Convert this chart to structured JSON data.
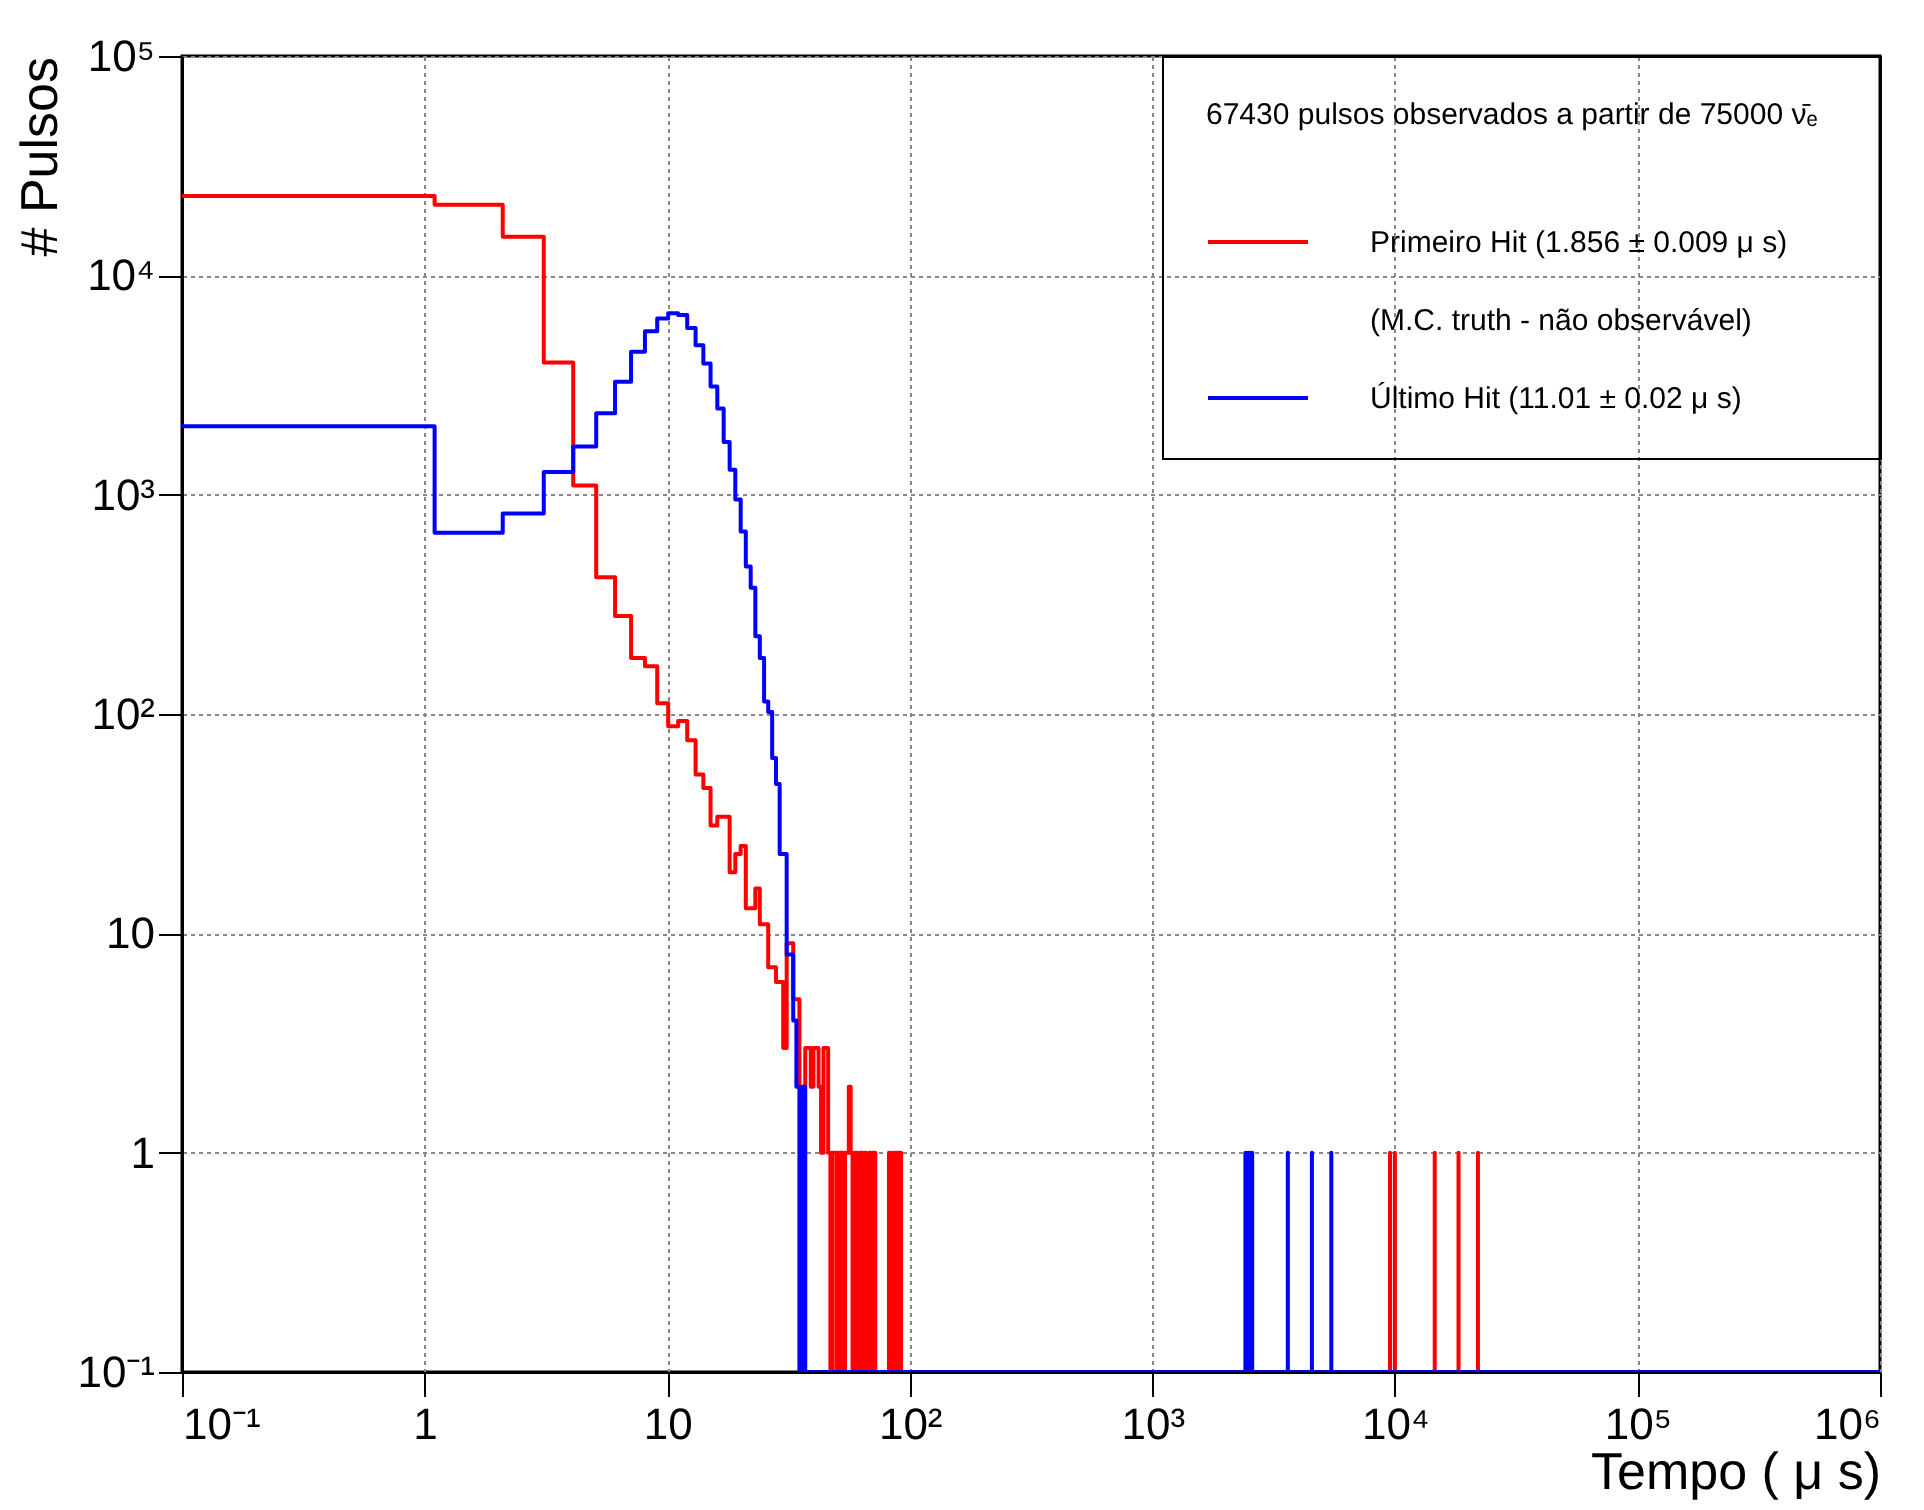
{
  "chart_data": {
    "type": "step",
    "xlabel": "Tempo ( μ s)",
    "ylabel": "# Pulsos",
    "legend_title": "67430   pulsos observados a partir de 75000 ν̄ₑ",
    "annotations": [
      "(M.C. truth - não observável)"
    ],
    "log": "xy",
    "grid": true,
    "legend": "top right",
    "xlim": [
      0.1,
      1000000
    ],
    "ylim": [
      0.1,
      100000
    ],
    "xticks": [
      {
        "value": 0.1,
        "label": "10⁻¹"
      },
      1,
      10,
      {
        "value": 100,
        "label": "10²"
      },
      {
        "value": 1000,
        "label": "10³"
      },
      {
        "value": 10000,
        "label": "10⁴"
      },
      {
        "value": 100000,
        "label": "10⁵"
      },
      {
        "value": 1000000,
        "label": "10⁶"
      }
    ],
    "yticks": [
      {
        "value": 0.1,
        "label": "10⁻¹"
      },
      1,
      10,
      {
        "value": 100,
        "label": "10²"
      },
      {
        "value": 1000,
        "label": "10³"
      },
      {
        "value": 10000,
        "label": "10⁴"
      },
      {
        "value": 100000,
        "label": "10⁵"
      }
    ],
    "series": [
      {
        "name": "Primeiro Hit  (1.856 ± 0.009 μ s)",
        "color": "#ff0000",
        "x": [
          0.1,
          1.1,
          2.1,
          3.1,
          4.1,
          5.1,
          6.1,
          7.1,
          8.1,
          9.1,
          10.1,
          11.1,
          12.1,
          13.1,
          14.1,
          15.1,
          16.1,
          17.1,
          18.1,
          19.1,
          20.1,
          21.1,
          22.1,
          23.1,
          24.1,
          25.1,
          26.1,
          27.1,
          28.1,
          29.1,
          30.1,
          31.1,
          32.1,
          33.1,
          34.1,
          35.1,
          36.1,
          37.1,
          38.1,
          39.1,
          40.1,
          41.1,
          42.1,
          43.1,
          44.1,
          45.1,
          46.1,
          47.1,
          48.1,
          49.1,
          50.1,
          51.1,
          52.1,
          53.1,
          54.1,
          55.1,
          56.1,
          57.1,
          58.1,
          59.1,
          60.1,
          61.1,
          62.1,
          63.1,
          64.1,
          65.1,
          66.1,
          67.1,
          68.1,
          69.1,
          70.1,
          71.1,
          72.1,
          73.1,
          74.1,
          75.1,
          76.1,
          77.1,
          78.1,
          79.1,
          80.1,
          81.1,
          82.1,
          83.1,
          84.1,
          85.1,
          86.1,
          87.1,
          88.1,
          89.1,
          90.1,
          91.1,
          92.1,
          93.1,
          94.1,
          95.1,
          96.1,
          97.1,
          98.1,
          99.1,
          100.1,
          9550.1,
          9551.1,
          10000.1,
          10001.1,
          14600.1,
          14601.1,
          18300.1,
          18301.1,
          22000.1,
          22001.1
        ],
        "values": [
          23000,
          21000,
          15000,
          4000,
          1100,
          420,
          280,
          180,
          165,
          112,
          88,
          93,
          76,
          53,
          46,
          31,
          34,
          34,
          19,
          23,
          25,
          13,
          13,
          16,
          11,
          11,
          7,
          7,
          6,
          6,
          3,
          9,
          9,
          5,
          5,
          2,
          2,
          3,
          3,
          2,
          3,
          3,
          2,
          1,
          3,
          3,
          1,
          0.1,
          1,
          1,
          0.1,
          1,
          1,
          0.1,
          1,
          1,
          2,
          1,
          0.1,
          1,
          1,
          0.1,
          1,
          1,
          0.1,
          1,
          0.1,
          0.1,
          1,
          0.1,
          1,
          1,
          0.1,
          0.1,
          0.1,
          0.1,
          0.1,
          0.1,
          0.1,
          0.1,
          0.1,
          0.1,
          1,
          0.1,
          0.1,
          1,
          0.1,
          1,
          0.1,
          1,
          0.1,
          1,
          0.1,
          0.1,
          0.1,
          0.1,
          0.1,
          0.1,
          0.1,
          0.1,
          0.1,
          1,
          0.1,
          1,
          0.1,
          1,
          0.1,
          1,
          0.1,
          1,
          0.1
        ]
      },
      {
        "name": "Último   Hit  (11.01 ± 0.02 μ s)",
        "color": "#0000ff",
        "x": [
          0.1,
          1.1,
          2.1,
          3.1,
          4.1,
          5.1,
          6.1,
          7.1,
          8.1,
          9.1,
          10.1,
          11.1,
          12.1,
          13.1,
          14.1,
          15.1,
          16.1,
          17.1,
          18.1,
          19.1,
          20.1,
          21.1,
          22.1,
          23.1,
          24.1,
          25.1,
          26.1,
          27.1,
          28.1,
          29.1,
          30.1,
          31.1,
          32.1,
          33.1,
          34.1,
          35.1,
          36.1,
          37.1,
          2420.1,
          2421.1,
          2480.1,
          2481.1,
          2530.1,
          2531.1,
          2580.1,
          2581.1,
          3620.1,
          3621.1,
          4550.1,
          4551.1,
          5470.1,
          5471.1,
          1000000
        ],
        "values": [
          2050,
          670,
          820,
          1270,
          1660,
          2350,
          3270,
          4480,
          5560,
          6360,
          6710,
          6600,
          5750,
          4800,
          3960,
          3110,
          2470,
          1740,
          1300,
          950,
          680,
          470,
          376,
          226,
          180,
          114,
          102,
          63,
          48,
          23,
          23,
          8,
          8,
          4,
          2,
          0.1,
          2,
          0.1,
          1,
          0.1,
          1,
          0.1,
          1,
          0.1,
          1,
          0.1,
          1,
          0.1,
          1,
          0.1,
          1,
          0.1,
          0.1
        ]
      }
    ]
  }
}
